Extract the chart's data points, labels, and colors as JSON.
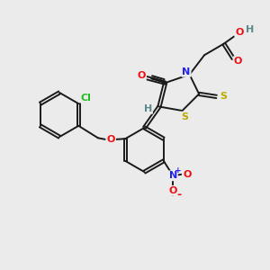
{
  "bg_color": "#ebebeb",
  "atom_colors": {
    "C": "#1a1a1a",
    "H": "#5a8a8a",
    "O": "#ee1111",
    "N": "#2222ee",
    "S": "#bbaa00",
    "Cl": "#22bb22"
  },
  "bond_color": "#1a1a1a",
  "figsize": [
    3.0,
    3.0
  ],
  "dpi": 100,
  "lw": 1.4,
  "dbl_off": 0.055,
  "fs": 8.5
}
